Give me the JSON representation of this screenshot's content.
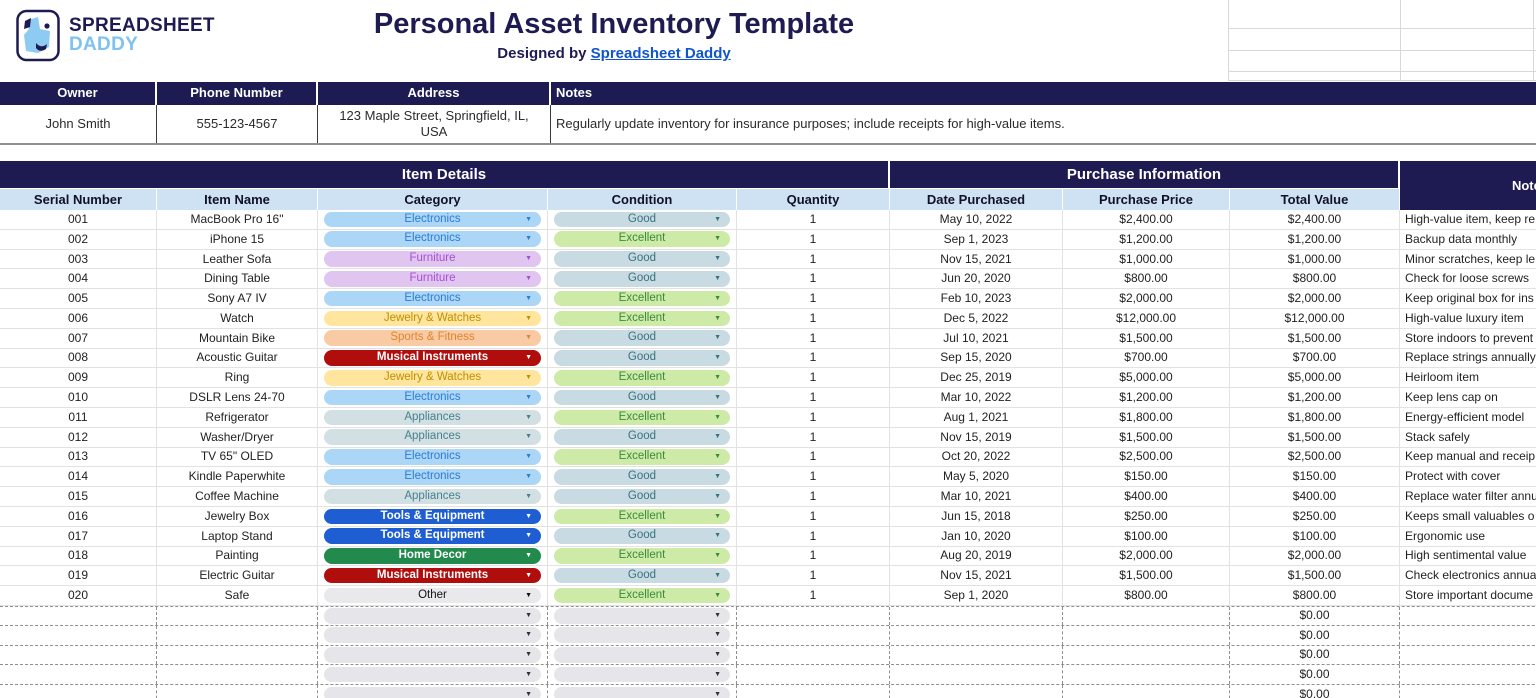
{
  "brand": {
    "line1": "SPREADSHEET",
    "line2": "DADDY"
  },
  "header": {
    "title": "Personal Asset Inventory Template",
    "subtitle_prefix": "Designed by",
    "subtitle_link": "Spreadsheet Daddy"
  },
  "owner_info": {
    "headers": [
      "Owner",
      "Phone Number",
      "Address",
      "Notes"
    ],
    "owner": "John Smith",
    "phone": "555-123-4567",
    "address_line1": "123 Maple Street, Springfield, IL,",
    "address_line2": "USA",
    "notes": "Regularly update inventory for insurance purposes; include receipts for high-value items."
  },
  "table": {
    "groups": {
      "item_details": "Item Details",
      "purchase_information": "Purchase Information",
      "notes": "Notes"
    },
    "columns": [
      "Serial Number",
      "Item Name",
      "Category",
      "Condition",
      "Quantity",
      "Date Purchased",
      "Purchase Price",
      "Total Value"
    ],
    "rows": [
      {
        "serial": "001",
        "item": "MacBook Pro 16\"",
        "category": "Electronics",
        "cat_key": "electronics",
        "condition": "Good",
        "cond_key": "good",
        "quantity": "1",
        "date": "May 10, 2022",
        "price": "$2,400.00",
        "total": "$2,400.00",
        "note": "High-value item, keep re"
      },
      {
        "serial": "002",
        "item": "iPhone 15",
        "category": "Electronics",
        "cat_key": "electronics",
        "condition": "Excellent",
        "cond_key": "excellent",
        "quantity": "1",
        "date": "Sep 1, 2023",
        "price": "$1,200.00",
        "total": "$1,200.00",
        "note": "Backup data monthly"
      },
      {
        "serial": "003",
        "item": "Leather Sofa",
        "category": "Furniture",
        "cat_key": "furniture",
        "condition": "Good",
        "cond_key": "good",
        "quantity": "1",
        "date": "Nov 15, 2021",
        "price": "$1,000.00",
        "total": "$1,000.00",
        "note": "Minor scratches, keep le"
      },
      {
        "serial": "004",
        "item": "Dining Table",
        "category": "Furniture",
        "cat_key": "furniture",
        "condition": "Good",
        "cond_key": "good",
        "quantity": "1",
        "date": "Jun 20, 2020",
        "price": "$800.00",
        "total": "$800.00",
        "note": "Check for loose screws"
      },
      {
        "serial": "005",
        "item": "Sony A7 IV",
        "category": "Electronics",
        "cat_key": "electronics",
        "condition": "Excellent",
        "cond_key": "excellent",
        "quantity": "1",
        "date": "Feb 10, 2023",
        "price": "$2,000.00",
        "total": "$2,000.00",
        "note": "Keep original box for ins"
      },
      {
        "serial": "006",
        "item": "Watch",
        "category": "Jewelry & Watches",
        "cat_key": "jewelry",
        "condition": "Excellent",
        "cond_key": "excellent",
        "quantity": "1",
        "date": "Dec 5, 2022",
        "price": "$12,000.00",
        "total": "$12,000.00",
        "note": "High-value luxury item"
      },
      {
        "serial": "007",
        "item": "Mountain Bike",
        "category": "Sports & Fitness",
        "cat_key": "sports",
        "condition": "Good",
        "cond_key": "good",
        "quantity": "1",
        "date": "Jul 10, 2021",
        "price": "$1,500.00",
        "total": "$1,500.00",
        "note": "Store indoors to prevent"
      },
      {
        "serial": "008",
        "item": "Acoustic Guitar",
        "category": "Musical Instruments",
        "cat_key": "musical",
        "condition": "Good",
        "cond_key": "good",
        "quantity": "1",
        "date": "Sep 15, 2020",
        "price": "$700.00",
        "total": "$700.00",
        "note": "Replace strings annually"
      },
      {
        "serial": "009",
        "item": "Ring",
        "category": "Jewelry & Watches",
        "cat_key": "jewelry",
        "condition": "Excellent",
        "cond_key": "excellent",
        "quantity": "1",
        "date": "Dec 25, 2019",
        "price": "$5,000.00",
        "total": "$5,000.00",
        "note": "Heirloom item"
      },
      {
        "serial": "010",
        "item": "DSLR Lens 24-70",
        "category": "Electronics",
        "cat_key": "electronics",
        "condition": "Good",
        "cond_key": "good",
        "quantity": "1",
        "date": "Mar 10, 2022",
        "price": "$1,200.00",
        "total": "$1,200.00",
        "note": "Keep lens cap on"
      },
      {
        "serial": "011",
        "item": "Refrigerator",
        "category": "Appliances",
        "cat_key": "appliances",
        "condition": "Excellent",
        "cond_key": "excellent",
        "quantity": "1",
        "date": "Aug 1, 2021",
        "price": "$1,800.00",
        "total": "$1,800.00",
        "note": "Energy-efficient model"
      },
      {
        "serial": "012",
        "item": "Washer/Dryer",
        "category": "Appliances",
        "cat_key": "appliances",
        "condition": "Good",
        "cond_key": "good",
        "quantity": "1",
        "date": "Nov 15, 2019",
        "price": "$1,500.00",
        "total": "$1,500.00",
        "note": "Stack safely"
      },
      {
        "serial": "013",
        "item": "TV 65\" OLED",
        "category": "Electronics",
        "cat_key": "electronics",
        "condition": "Excellent",
        "cond_key": "excellent",
        "quantity": "1",
        "date": "Oct 20, 2022",
        "price": "$2,500.00",
        "total": "$2,500.00",
        "note": "Keep manual and receip"
      },
      {
        "serial": "014",
        "item": "Kindle Paperwhite",
        "category": "Electronics",
        "cat_key": "electronics",
        "condition": "Good",
        "cond_key": "good",
        "quantity": "1",
        "date": "May 5, 2020",
        "price": "$150.00",
        "total": "$150.00",
        "note": "Protect with cover"
      },
      {
        "serial": "015",
        "item": "Coffee Machine",
        "category": "Appliances",
        "cat_key": "appliances",
        "condition": "Good",
        "cond_key": "good",
        "quantity": "1",
        "date": "Mar 10, 2021",
        "price": "$400.00",
        "total": "$400.00",
        "note": "Replace water filter annu"
      },
      {
        "serial": "016",
        "item": "Jewelry Box",
        "category": "Tools & Equipment",
        "cat_key": "tools",
        "condition": "Excellent",
        "cond_key": "excellent",
        "quantity": "1",
        "date": "Jun 15, 2018",
        "price": "$250.00",
        "total": "$250.00",
        "note": "Keeps small valuables o"
      },
      {
        "serial": "017",
        "item": "Laptop Stand",
        "category": "Tools & Equipment",
        "cat_key": "tools",
        "condition": "Good",
        "cond_key": "good",
        "quantity": "1",
        "date": "Jan 10, 2020",
        "price": "$100.00",
        "total": "$100.00",
        "note": "Ergonomic use"
      },
      {
        "serial": "018",
        "item": "Painting",
        "category": "Home Decor",
        "cat_key": "home_decor",
        "condition": "Excellent",
        "cond_key": "excellent",
        "quantity": "1",
        "date": "Aug 20, 2019",
        "price": "$2,000.00",
        "total": "$2,000.00",
        "note": "High sentimental value"
      },
      {
        "serial": "019",
        "item": "Electric Guitar",
        "category": "Musical Instruments",
        "cat_key": "musical",
        "condition": "Good",
        "cond_key": "good",
        "quantity": "1",
        "date": "Nov 15, 2021",
        "price": "$1,500.00",
        "total": "$1,500.00",
        "note": "Check electronics annua"
      },
      {
        "serial": "020",
        "item": "Safe",
        "category": "Other",
        "cat_key": "other",
        "condition": "Excellent",
        "cond_key": "excellent",
        "quantity": "1",
        "date": "Sep 1, 2020",
        "price": "$800.00",
        "total": "$800.00",
        "note": "Store important docume"
      }
    ],
    "empty_rows": 5,
    "empty_total_value": "$0.00"
  },
  "palette": {
    "electronics": {
      "bg": "#abd6f5",
      "fg": "#2e7cd6"
    },
    "furniture": {
      "bg": "#e0c5f0",
      "fg": "#a64fd0"
    },
    "jewelry": {
      "bg": "#ffe59d",
      "fg": "#bf9002"
    },
    "sports": {
      "bg": "#f9cba4",
      "fg": "#e08330"
    },
    "musical": {
      "bg": "#b00d0d",
      "fg": "#ffffff"
    },
    "appliances": {
      "bg": "#d2e0e4",
      "fg": "#47808d"
    },
    "tools": {
      "bg": "#1f5ed2",
      "fg": "#ffffff"
    },
    "home_decor": {
      "bg": "#218a4c",
      "fg": "#ffffff"
    },
    "other": {
      "bg": "#e9e9ec",
      "fg": "#111111"
    },
    "good": {
      "bg": "#c8dae2",
      "fg": "#3b7280"
    },
    "excellent": {
      "bg": "#cdeaa6",
      "fg": "#3c8a40"
    },
    "empty": {
      "bg": "#e5e5ea",
      "fg": "#333333"
    }
  },
  "colors": {
    "header_navy": "#1e1b52",
    "subheader_blue": "#cfe2f3",
    "link_blue": "#1155cc",
    "brand_light_blue": "#7ec3f0"
  }
}
